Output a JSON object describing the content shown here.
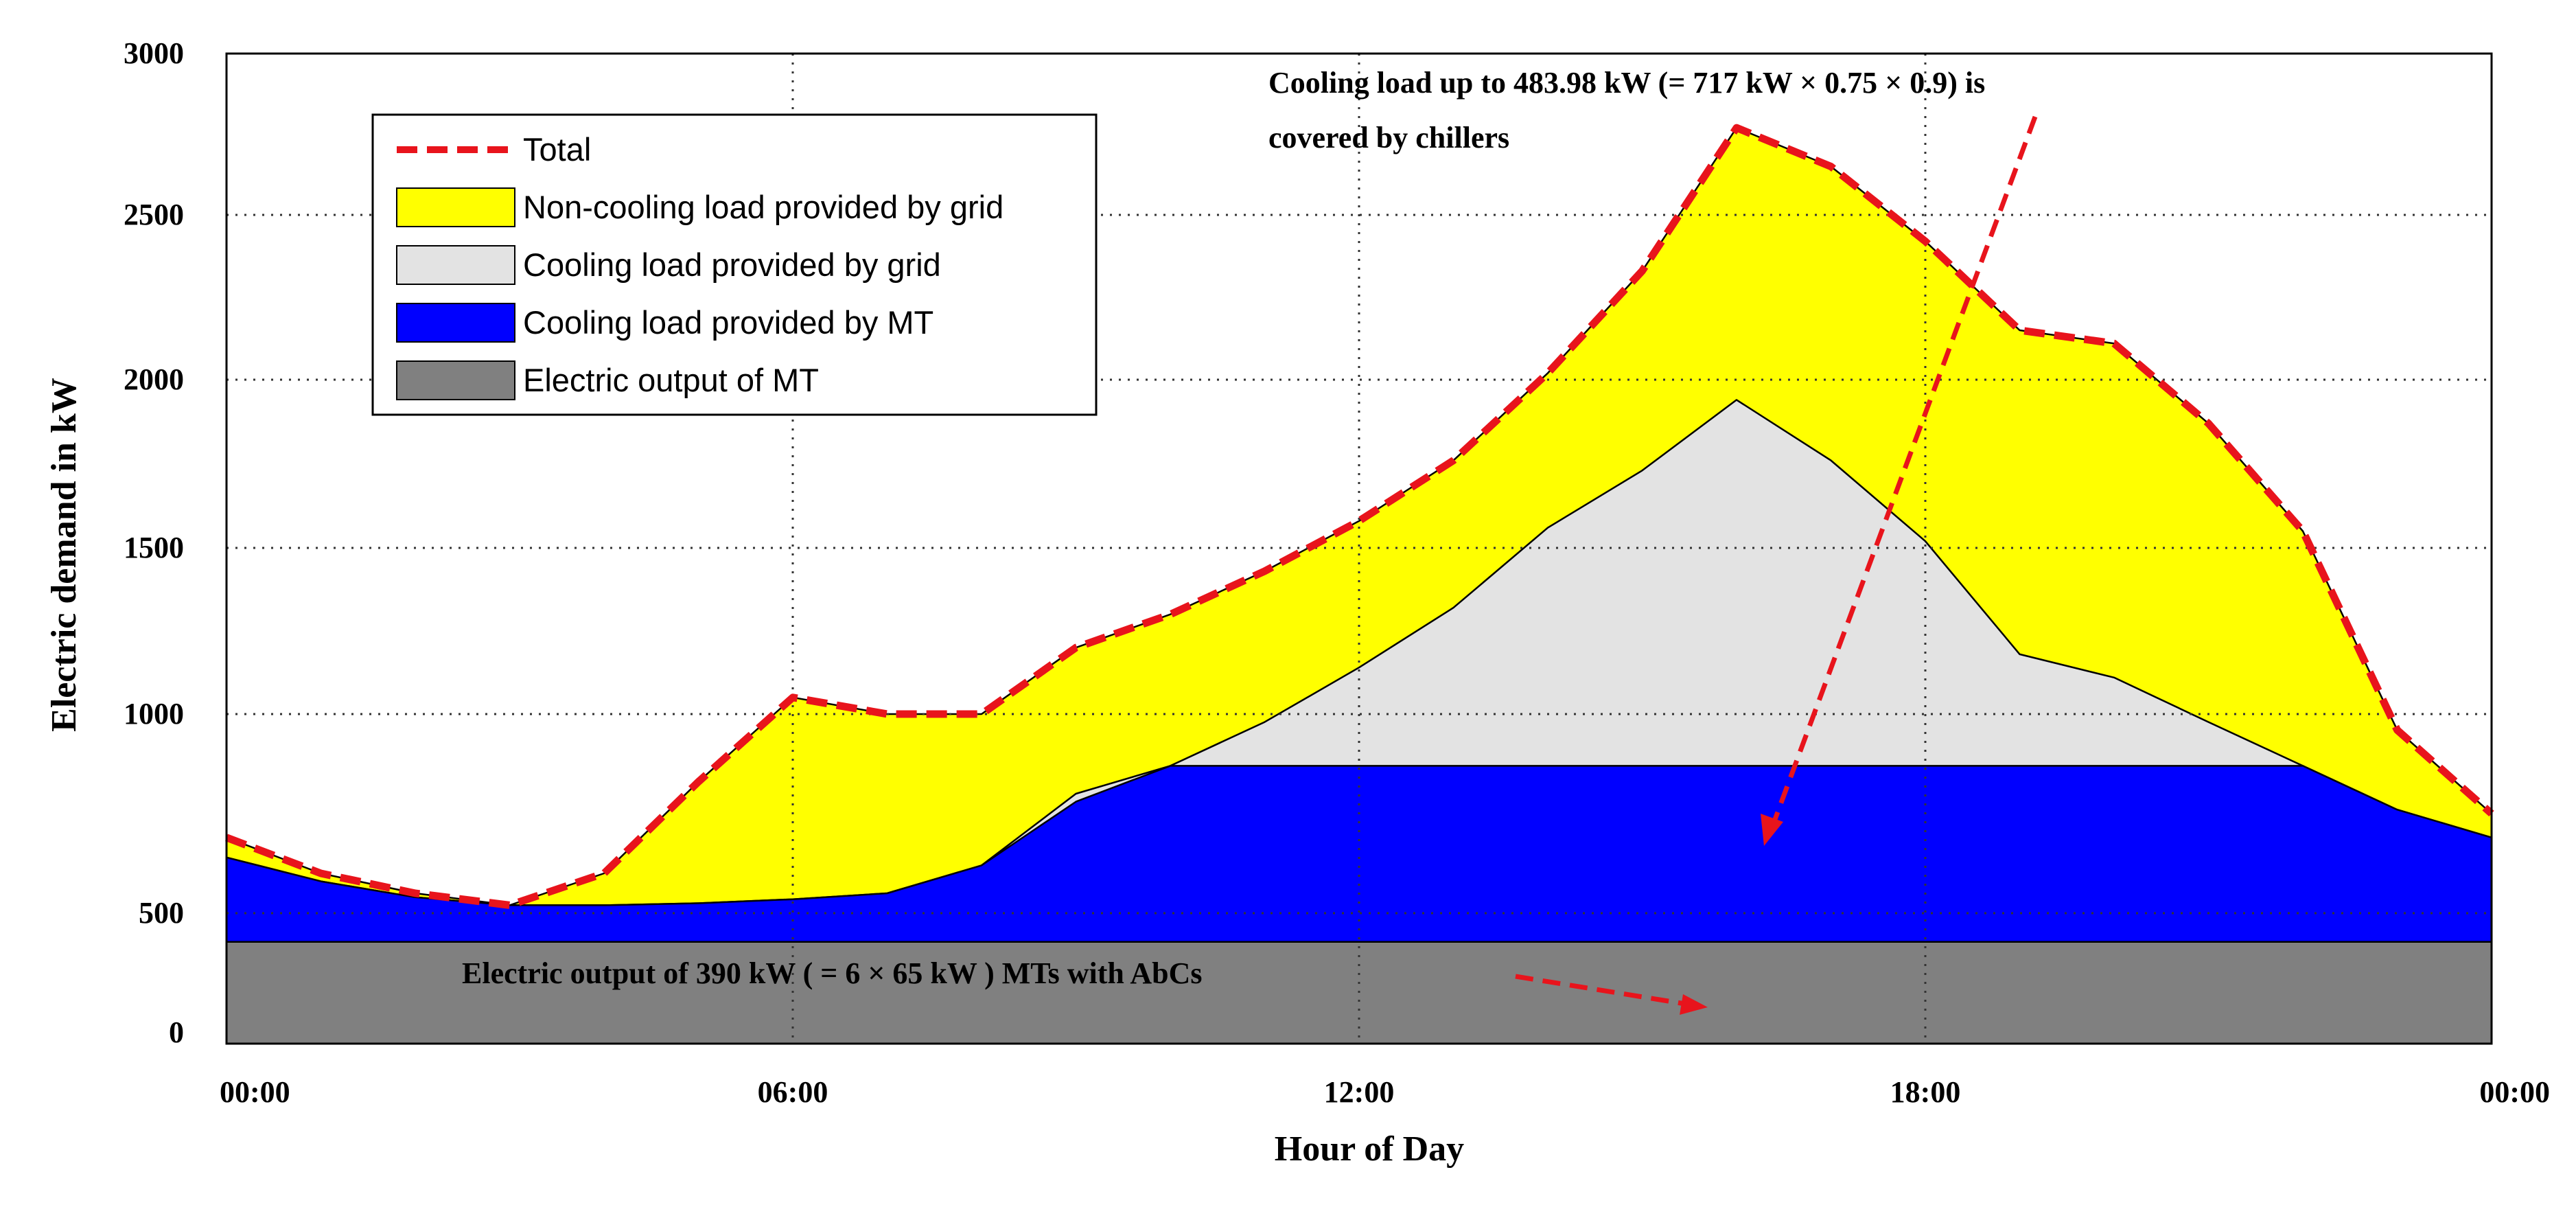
{
  "chart_data": {
    "type": "area",
    "title": "",
    "xlabel": "Hour of Day",
    "ylabel": "Electric demand in kW",
    "x_ticks": [
      "00:00",
      "06:00",
      "12:00",
      "18:00",
      "00:00"
    ],
    "x_tick_hours": [
      0,
      6,
      12,
      18,
      24
    ],
    "xlim": [
      0,
      24
    ],
    "y_ticks": [
      0,
      500,
      1000,
      1500,
      2000,
      2500,
      3000
    ],
    "ylim": [
      0,
      3000
    ],
    "grid": true,
    "legend_position": "top-left",
    "x": [
      0,
      1,
      2,
      3,
      4,
      5,
      6,
      7,
      8,
      9,
      10,
      11,
      12,
      13,
      14,
      15,
      16,
      17,
      18,
      19,
      20,
      21,
      22,
      23,
      24
    ],
    "series": [
      {
        "name": "Total",
        "style": "dashed-line",
        "color": "#e8141c",
        "values": [
          690,
          600,
          550,
          520,
          600,
          830,
          1050,
          1000,
          1000,
          1200,
          1300,
          1430,
          1580,
          1760,
          2020,
          2330,
          2770,
          2650,
          2420,
          2150,
          2110,
          1870,
          1550,
          960,
          750
        ]
      },
      {
        "name": "Non-cooling load provided by grid",
        "color": "#ffff00",
        "values": [
          690,
          600,
          550,
          520,
          600,
          830,
          1050,
          1000,
          1000,
          1200,
          1300,
          1430,
          1580,
          1760,
          2020,
          2330,
          2770,
          2650,
          2420,
          2150,
          2110,
          1870,
          1550,
          960,
          750
        ]
      },
      {
        "name": "Cooling load provided by grid",
        "color": "#e3e3e3",
        "values": [
          640,
          580,
          540,
          520,
          520,
          525,
          535,
          550,
          620,
          800,
          870,
          980,
          1140,
          1320,
          1560,
          1730,
          1940,
          1760,
          1520,
          1180,
          1110,
          980,
          870,
          760,
          690
        ]
      },
      {
        "name": "Cooling load provided by MT",
        "color": "#0000ff",
        "values": [
          640,
          580,
          540,
          520,
          520,
          525,
          535,
          550,
          620,
          780,
          870,
          870,
          870,
          870,
          870,
          870,
          870,
          870,
          870,
          870,
          870,
          870,
          870,
          760,
          690
        ]
      },
      {
        "name": "Electric output of MT",
        "color": "#808080",
        "values": [
          390,
          390,
          390,
          390,
          390,
          390,
          390,
          390,
          390,
          390,
          390,
          390,
          390,
          390,
          390,
          390,
          390,
          390,
          390,
          390,
          390,
          390,
          390,
          390,
          390
        ]
      }
    ],
    "annotations": [
      {
        "text": "Cooling load up to 483.98 kW (= 717 kW × 0.75 × 0.9) is",
        "line2": "covered by chillers",
        "arrow_to_hour": 16.5,
        "arrow_to_kw": 600
      },
      {
        "text": "Electric output of 390 kW ( = 6 × 65 kW ) MTs with AbCs",
        "arrow_to_hour": 15.4,
        "arrow_to_kw": 120
      }
    ]
  }
}
